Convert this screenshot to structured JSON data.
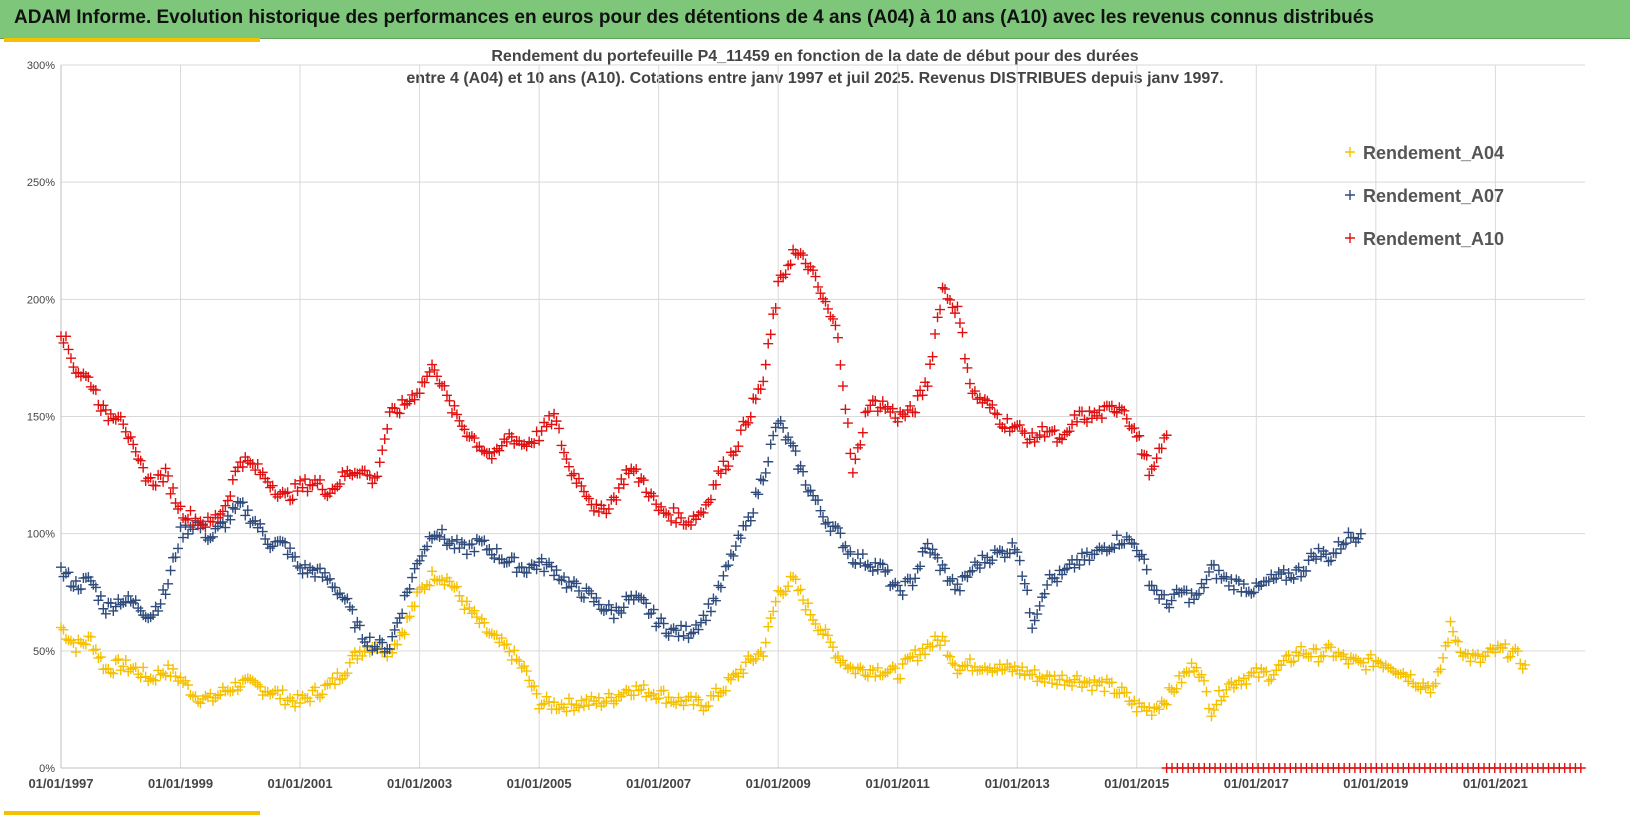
{
  "banner": {
    "title": "ADAM Informe. Evolution historique des performances en euros pour des détentions de 4 ans (A04) à 10 ans (A10) avec les revenus connus distribués"
  },
  "colors": {
    "banner_bg": "#7dc67a",
    "accent": "#f5c000",
    "A04": "#f5c000",
    "A07": "#2f4b7c",
    "A10": "#e01010"
  },
  "chart_data": {
    "type": "scatter",
    "title_lines": [
      "Rendement du portefeuille P4_11459 en fonction de la date de début pour des durées",
      "entre 4 (A04) et 10 ans (A10). Cotations entre janv 1997 et juil 2025. Revenus DISTRIBUES depuis janv 1997."
    ],
    "marker": "+",
    "grid": true,
    "legend_position": "top-right",
    "x_range": [
      "1997-01-01",
      "2022-06-01"
    ],
    "y_range": [
      0,
      3.0
    ],
    "y_ticks": [
      {
        "value": 0,
        "label": "0%"
      },
      {
        "value": 0.5,
        "label": "50%"
      },
      {
        "value": 1.0,
        "label": "100%"
      },
      {
        "value": 1.5,
        "label": "150%"
      },
      {
        "value": 2.0,
        "label": "200%"
      },
      {
        "value": 2.5,
        "label": "250%"
      },
      {
        "value": 3.0,
        "label": "300%"
      }
    ],
    "x_ticks": [
      "01/01/1997",
      "01/01/1999",
      "01/01/2001",
      "01/01/2003",
      "01/01/2005",
      "01/01/2007",
      "01/01/2009",
      "01/01/2011",
      "01/01/2013",
      "01/01/2015",
      "01/01/2017",
      "01/01/2019",
      "01/01/2021"
    ],
    "series": [
      {
        "name": "Rendement_A04",
        "color": "#f5c000",
        "points": [
          [
            1997.0,
            0.6
          ],
          [
            1997.25,
            0.52
          ],
          [
            1997.5,
            0.55
          ],
          [
            1997.75,
            0.42
          ],
          [
            1998.0,
            0.44
          ],
          [
            1998.25,
            0.42
          ],
          [
            1998.5,
            0.38
          ],
          [
            1998.75,
            0.42
          ],
          [
            1999.0,
            0.38
          ],
          [
            1999.25,
            0.31
          ],
          [
            1999.5,
            0.29
          ],
          [
            1999.75,
            0.33
          ],
          [
            2000.0,
            0.36
          ],
          [
            2000.25,
            0.35
          ],
          [
            2000.5,
            0.33
          ],
          [
            2000.75,
            0.3
          ],
          [
            2001.0,
            0.28
          ],
          [
            2001.25,
            0.32
          ],
          [
            2001.5,
            0.35
          ],
          [
            2001.75,
            0.42
          ],
          [
            2002.0,
            0.5
          ],
          [
            2002.25,
            0.53
          ],
          [
            2002.5,
            0.5
          ],
          [
            2002.75,
            0.6
          ],
          [
            2003.0,
            0.75
          ],
          [
            2003.25,
            0.83
          ],
          [
            2003.5,
            0.8
          ],
          [
            2003.75,
            0.7
          ],
          [
            2004.0,
            0.62
          ],
          [
            2004.25,
            0.55
          ],
          [
            2004.5,
            0.5
          ],
          [
            2004.75,
            0.42
          ],
          [
            2005.0,
            0.28
          ],
          [
            2005.25,
            0.27
          ],
          [
            2005.5,
            0.27
          ],
          [
            2005.75,
            0.28
          ],
          [
            2006.0,
            0.28
          ],
          [
            2006.25,
            0.3
          ],
          [
            2006.5,
            0.34
          ],
          [
            2006.75,
            0.33
          ],
          [
            2007.0,
            0.32
          ],
          [
            2007.25,
            0.29
          ],
          [
            2007.5,
            0.28
          ],
          [
            2007.75,
            0.27
          ],
          [
            2008.0,
            0.32
          ],
          [
            2008.25,
            0.38
          ],
          [
            2008.5,
            0.45
          ],
          [
            2008.75,
            0.5
          ],
          [
            2009.0,
            0.75
          ],
          [
            2009.25,
            0.8
          ],
          [
            2009.5,
            0.68
          ],
          [
            2009.75,
            0.58
          ],
          [
            2010.0,
            0.48
          ],
          [
            2010.25,
            0.42
          ],
          [
            2010.5,
            0.42
          ],
          [
            2010.75,
            0.42
          ],
          [
            2011.0,
            0.4
          ],
          [
            2011.25,
            0.47
          ],
          [
            2011.5,
            0.52
          ],
          [
            2011.75,
            0.55
          ],
          [
            2012.0,
            0.43
          ],
          [
            2012.25,
            0.44
          ],
          [
            2012.5,
            0.44
          ],
          [
            2012.75,
            0.42
          ],
          [
            2013.0,
            0.42
          ],
          [
            2013.25,
            0.4
          ],
          [
            2013.5,
            0.38
          ],
          [
            2013.75,
            0.38
          ],
          [
            2014.0,
            0.38
          ],
          [
            2014.25,
            0.36
          ],
          [
            2014.5,
            0.35
          ],
          [
            2014.75,
            0.32
          ],
          [
            2015.0,
            0.26
          ],
          [
            2015.25,
            0.25
          ],
          [
            2015.5,
            0.3
          ],
          [
            2015.75,
            0.38
          ],
          [
            2016.0,
            0.45
          ],
          [
            2016.25,
            0.25
          ],
          [
            2016.5,
            0.35
          ],
          [
            2016.75,
            0.38
          ],
          [
            2017.0,
            0.4
          ],
          [
            2017.25,
            0.4
          ],
          [
            2017.5,
            0.45
          ],
          [
            2017.75,
            0.5
          ],
          [
            2018.0,
            0.48
          ],
          [
            2018.25,
            0.5
          ],
          [
            2018.5,
            0.46
          ],
          [
            2018.75,
            0.44
          ],
          [
            2019.0,
            0.46
          ],
          [
            2019.25,
            0.44
          ],
          [
            2019.5,
            0.4
          ],
          [
            2019.75,
            0.36
          ],
          [
            2020.0,
            0.34
          ],
          [
            2020.25,
            0.6
          ],
          [
            2020.5,
            0.48
          ],
          [
            2020.75,
            0.46
          ],
          [
            2021.0,
            0.5
          ],
          [
            2021.25,
            0.5
          ],
          [
            2021.5,
            0.44
          ]
        ]
      },
      {
        "name": "Rendement_A07",
        "color": "#2f4b7c",
        "points": [
          [
            1997.0,
            0.84
          ],
          [
            1997.25,
            0.78
          ],
          [
            1997.5,
            0.8
          ],
          [
            1997.75,
            0.68
          ],
          [
            1998.0,
            0.72
          ],
          [
            1998.25,
            0.7
          ],
          [
            1998.5,
            0.65
          ],
          [
            1998.75,
            0.75
          ],
          [
            1999.0,
            1.0
          ],
          [
            1999.25,
            1.05
          ],
          [
            1999.5,
            0.98
          ],
          [
            1999.75,
            1.05
          ],
          [
            2000.0,
            1.12
          ],
          [
            2000.25,
            1.05
          ],
          [
            2000.5,
            0.96
          ],
          [
            2000.75,
            0.95
          ],
          [
            2001.0,
            0.85
          ],
          [
            2001.25,
            0.84
          ],
          [
            2001.5,
            0.8
          ],
          [
            2001.75,
            0.72
          ],
          [
            2002.0,
            0.58
          ],
          [
            2002.25,
            0.52
          ],
          [
            2002.5,
            0.52
          ],
          [
            2002.75,
            0.72
          ],
          [
            2003.0,
            0.9
          ],
          [
            2003.25,
            1.02
          ],
          [
            2003.5,
            0.96
          ],
          [
            2003.75,
            0.93
          ],
          [
            2004.0,
            0.96
          ],
          [
            2004.25,
            0.92
          ],
          [
            2004.5,
            0.88
          ],
          [
            2004.75,
            0.85
          ],
          [
            2005.0,
            0.87
          ],
          [
            2005.25,
            0.85
          ],
          [
            2005.5,
            0.78
          ],
          [
            2005.75,
            0.75
          ],
          [
            2006.0,
            0.7
          ],
          [
            2006.25,
            0.66
          ],
          [
            2006.5,
            0.72
          ],
          [
            2006.75,
            0.7
          ],
          [
            2007.0,
            0.62
          ],
          [
            2007.25,
            0.58
          ],
          [
            2007.5,
            0.58
          ],
          [
            2007.75,
            0.64
          ],
          [
            2008.0,
            0.75
          ],
          [
            2008.25,
            0.92
          ],
          [
            2008.5,
            1.05
          ],
          [
            2008.75,
            1.25
          ],
          [
            2009.0,
            1.48
          ],
          [
            2009.25,
            1.35
          ],
          [
            2009.5,
            1.2
          ],
          [
            2009.75,
            1.08
          ],
          [
            2010.0,
            1.0
          ],
          [
            2010.25,
            0.9
          ],
          [
            2010.5,
            0.88
          ],
          [
            2010.75,
            0.85
          ],
          [
            2011.0,
            0.75
          ],
          [
            2011.25,
            0.8
          ],
          [
            2011.5,
            0.95
          ],
          [
            2011.75,
            0.85
          ],
          [
            2012.0,
            0.76
          ],
          [
            2012.25,
            0.85
          ],
          [
            2012.5,
            0.9
          ],
          [
            2012.75,
            0.92
          ],
          [
            2013.0,
            0.95
          ],
          [
            2013.25,
            0.62
          ],
          [
            2013.5,
            0.8
          ],
          [
            2013.75,
            0.82
          ],
          [
            2014.0,
            0.88
          ],
          [
            2014.25,
            0.9
          ],
          [
            2014.5,
            0.95
          ],
          [
            2014.75,
            0.98
          ],
          [
            2015.0,
            0.95
          ],
          [
            2015.25,
            0.78
          ],
          [
            2015.5,
            0.7
          ],
          [
            2015.75,
            0.75
          ],
          [
            2016.0,
            0.72
          ],
          [
            2016.25,
            0.85
          ],
          [
            2016.5,
            0.8
          ],
          [
            2016.75,
            0.78
          ],
          [
            2017.0,
            0.76
          ],
          [
            2017.25,
            0.8
          ],
          [
            2017.5,
            0.82
          ],
          [
            2017.75,
            0.84
          ],
          [
            2018.0,
            0.92
          ],
          [
            2018.25,
            0.9
          ],
          [
            2018.5,
            0.98
          ],
          [
            2018.75,
            1.0
          ]
        ]
      },
      {
        "name": "Rendement_A10",
        "color": "#e01010",
        "points": [
          [
            1997.0,
            1.87
          ],
          [
            1997.25,
            1.7
          ],
          [
            1997.5,
            1.65
          ],
          [
            1997.75,
            1.5
          ],
          [
            1998.0,
            1.52
          ],
          [
            1998.25,
            1.32
          ],
          [
            1998.5,
            1.22
          ],
          [
            1998.75,
            1.25
          ],
          [
            1999.0,
            1.1
          ],
          [
            1999.25,
            1.06
          ],
          [
            1999.5,
            1.04
          ],
          [
            1999.75,
            1.12
          ],
          [
            2000.0,
            1.32
          ],
          [
            2000.25,
            1.28
          ],
          [
            2000.5,
            1.22
          ],
          [
            2000.75,
            1.15
          ],
          [
            2001.0,
            1.2
          ],
          [
            2001.25,
            1.22
          ],
          [
            2001.5,
            1.18
          ],
          [
            2001.75,
            1.25
          ],
          [
            2002.0,
            1.28
          ],
          [
            2002.25,
            1.22
          ],
          [
            2002.5,
            1.5
          ],
          [
            2002.75,
            1.55
          ],
          [
            2003.0,
            1.62
          ],
          [
            2003.25,
            1.72
          ],
          [
            2003.5,
            1.55
          ],
          [
            2003.75,
            1.45
          ],
          [
            2004.0,
            1.38
          ],
          [
            2004.25,
            1.32
          ],
          [
            2004.5,
            1.42
          ],
          [
            2004.75,
            1.38
          ],
          [
            2005.0,
            1.42
          ],
          [
            2005.25,
            1.5
          ],
          [
            2005.5,
            1.28
          ],
          [
            2005.75,
            1.2
          ],
          [
            2006.0,
            1.08
          ],
          [
            2006.25,
            1.15
          ],
          [
            2006.5,
            1.28
          ],
          [
            2006.75,
            1.22
          ],
          [
            2007.0,
            1.1
          ],
          [
            2007.25,
            1.08
          ],
          [
            2007.5,
            1.05
          ],
          [
            2007.75,
            1.1
          ],
          [
            2008.0,
            1.25
          ],
          [
            2008.25,
            1.35
          ],
          [
            2008.5,
            1.5
          ],
          [
            2008.75,
            1.65
          ],
          [
            2009.0,
            2.05
          ],
          [
            2009.25,
            2.2
          ],
          [
            2009.5,
            2.15
          ],
          [
            2009.75,
            2.0
          ],
          [
            2010.0,
            1.85
          ],
          [
            2010.25,
            1.25
          ],
          [
            2010.5,
            1.55
          ],
          [
            2010.75,
            1.55
          ],
          [
            2011.0,
            1.5
          ],
          [
            2011.25,
            1.52
          ],
          [
            2011.5,
            1.65
          ],
          [
            2011.75,
            2.05
          ],
          [
            2012.0,
            1.95
          ],
          [
            2012.25,
            1.6
          ],
          [
            2012.5,
            1.55
          ],
          [
            2012.75,
            1.48
          ],
          [
            2013.0,
            1.45
          ],
          [
            2013.25,
            1.4
          ],
          [
            2013.5,
            1.45
          ],
          [
            2013.75,
            1.38
          ],
          [
            2014.0,
            1.5
          ],
          [
            2014.25,
            1.5
          ],
          [
            2014.5,
            1.52
          ],
          [
            2014.75,
            1.55
          ],
          [
            2015.0,
            1.42
          ],
          [
            2015.25,
            1.25
          ],
          [
            2015.5,
            1.42
          ]
        ]
      },
      {
        "name": "",
        "color": "#e01010",
        "baseline_zero_range": [
          2015.5,
          2022.5
        ]
      }
    ]
  }
}
